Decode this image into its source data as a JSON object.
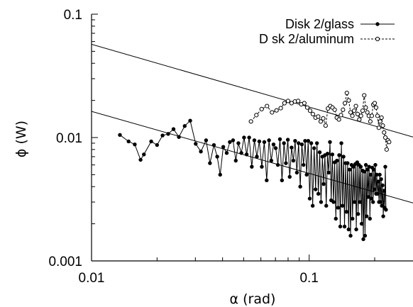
{
  "chart_data": {
    "type": "scatter",
    "title": "",
    "xlabel": "α (rad)",
    "ylabel": "ϕ (W)",
    "xscale": "log",
    "yscale": "log",
    "xlim": [
      0.01,
      0.3
    ],
    "ylim": [
      0.001,
      0.1
    ],
    "x_ticks": [
      0.01,
      0.1
    ],
    "x_tick_labels": [
      "0.01",
      "0.1"
    ],
    "y_ticks": [
      0.001,
      0.01,
      0.1
    ],
    "y_tick_labels": [
      "0.001",
      "0.01",
      "0.1"
    ],
    "grid": false,
    "legend_position": "top-right",
    "series": [
      {
        "name": "Disk 2/glass",
        "marker": "filled-circle",
        "line": "solid",
        "color": "#000000",
        "x": [
          0.0135,
          0.0148,
          0.0158,
          0.0168,
          0.0174,
          0.0188,
          0.02,
          0.0212,
          0.0225,
          0.0238,
          0.0252,
          0.0268,
          0.0284,
          0.0301,
          0.0318,
          0.0336,
          0.035,
          0.0365,
          0.0378,
          0.039,
          0.0403,
          0.0418,
          0.0432,
          0.0447,
          0.046,
          0.0473,
          0.0488,
          0.0502,
          0.0516,
          0.053,
          0.0545,
          0.056,
          0.0575,
          0.059,
          0.0606,
          0.0622,
          0.0638,
          0.0654,
          0.067,
          0.0686,
          0.0702,
          0.0718,
          0.0734,
          0.075,
          0.0766,
          0.0782,
          0.0798,
          0.0814,
          0.083,
          0.0846,
          0.0862,
          0.0878,
          0.0894,
          0.091,
          0.0926,
          0.0942,
          0.0958,
          0.0974,
          0.099,
          0.1006,
          0.1022,
          0.1038,
          0.1054,
          0.107,
          0.1086,
          0.1102,
          0.1118,
          0.1134,
          0.115,
          0.1166,
          0.1182,
          0.1198,
          0.1214,
          0.123,
          0.1246,
          0.1262,
          0.1278,
          0.1294,
          0.131,
          0.1326,
          0.1342,
          0.1358,
          0.1374,
          0.139,
          0.1406,
          0.1422,
          0.1438,
          0.1454,
          0.147,
          0.1486,
          0.1502,
          0.1518,
          0.1534,
          0.155,
          0.1566,
          0.1582,
          0.1598,
          0.1614,
          0.163,
          0.1646,
          0.1662,
          0.1678,
          0.1694,
          0.171,
          0.1726,
          0.1742,
          0.1758,
          0.1774,
          0.179,
          0.1806,
          0.1822,
          0.1838,
          0.1854,
          0.187,
          0.1886,
          0.1902,
          0.1918,
          0.1934,
          0.195,
          0.1966,
          0.1982,
          0.1998,
          0.2014,
          0.203,
          0.2046,
          0.2062,
          0.2078,
          0.2094,
          0.211,
          0.2126,
          0.2142,
          0.2158,
          0.2174,
          0.219,
          0.2206,
          0.2222,
          0.2238,
          0.2254
        ],
        "y": [
          0.0105,
          0.0093,
          0.0088,
          0.0066,
          0.0073,
          0.0093,
          0.0087,
          0.0104,
          0.0107,
          0.0117,
          0.0101,
          0.0124,
          0.0137,
          0.0089,
          0.0077,
          0.0095,
          0.0062,
          0.0087,
          0.007,
          0.005,
          0.0084,
          0.0075,
          0.0092,
          0.0095,
          0.0065,
          0.009,
          0.0075,
          0.01,
          0.0073,
          0.01,
          0.0058,
          0.0095,
          0.007,
          0.0093,
          0.0058,
          0.0092,
          0.0045,
          0.0095,
          0.0065,
          0.0088,
          0.0082,
          0.006,
          0.0097,
          0.0045,
          0.009,
          0.0062,
          0.0096,
          0.0048,
          0.0083,
          0.0065,
          0.0094,
          0.0052,
          0.009,
          0.004,
          0.0088,
          0.006,
          0.0094,
          0.005,
          0.0094,
          0.0032,
          0.009,
          0.0028,
          0.0082,
          0.0038,
          0.009,
          0.0035,
          0.0076,
          0.003,
          0.007,
          0.0042,
          0.0072,
          0.0028,
          0.0074,
          0.0052,
          0.0092,
          0.0031,
          0.0073,
          0.003,
          0.0063,
          0.0022,
          0.0065,
          0.0027,
          0.0072,
          0.0019,
          0.009,
          0.0028,
          0.007,
          0.0019,
          0.0062,
          0.0025,
          0.0062,
          0.0018,
          0.0055,
          0.0016,
          0.006,
          0.0022,
          0.0058,
          0.003,
          0.0061,
          0.0018,
          0.0063,
          0.0024,
          0.006,
          0.003,
          0.0058,
          0.002,
          0.0054,
          0.0015,
          0.0053,
          0.0016,
          0.006,
          0.0023,
          0.0055,
          0.0033,
          0.0058,
          0.0022,
          0.005,
          0.0032,
          0.0057,
          0.003,
          0.0055,
          0.0038,
          0.006,
          0.0035,
          0.005,
          0.0035,
          0.0044,
          0.003,
          0.005,
          0.003,
          0.0046,
          0.0028,
          0.0041,
          0.0023,
          0.0037,
          0.0027,
          0.0058,
          0.0026
        ]
      },
      {
        "name": "D sk 2/aluminum",
        "marker": "open-circle",
        "line": "dashed",
        "color": "#000000",
        "x": [
          0.054,
          0.0572,
          0.0605,
          0.064,
          0.0675,
          0.0708,
          0.074,
          0.077,
          0.08,
          0.083,
          0.086,
          0.089,
          0.092,
          0.095,
          0.098,
          0.101,
          0.104,
          0.107,
          0.11,
          0.113,
          0.116,
          0.119,
          0.122,
          0.125,
          0.128,
          0.131,
          0.134,
          0.137,
          0.14,
          0.143,
          0.146,
          0.149,
          0.152,
          0.155,
          0.158,
          0.161,
          0.164,
          0.167,
          0.17,
          0.173,
          0.176,
          0.179,
          0.182,
          0.185,
          0.188,
          0.191,
          0.194,
          0.197,
          0.2,
          0.203,
          0.206,
          0.209,
          0.212,
          0.215,
          0.218,
          0.221,
          0.224,
          0.227,
          0.23,
          0.233
        ],
        "y": [
          0.0135,
          0.0152,
          0.017,
          0.018,
          0.016,
          0.0166,
          0.0173,
          0.019,
          0.0198,
          0.019,
          0.0196,
          0.0198,
          0.0186,
          0.019,
          0.0175,
          0.0165,
          0.0155,
          0.0145,
          0.0148,
          0.0135,
          0.0143,
          0.0125,
          0.0172,
          0.018,
          0.0175,
          0.0168,
          0.0145,
          0.014,
          0.0152,
          0.0168,
          0.019,
          0.023,
          0.02,
          0.016,
          0.015,
          0.0165,
          0.018,
          0.0155,
          0.014,
          0.015,
          0.0165,
          0.022,
          0.0175,
          0.016,
          0.015,
          0.0135,
          0.015,
          0.0185,
          0.019,
          0.0175,
          0.015,
          0.012,
          0.0135,
          0.0145,
          0.0125,
          0.011,
          0.01,
          0.008,
          0.0095,
          0.0092
        ]
      }
    ],
    "reference_lines": [
      {
        "style": "solid",
        "x": [
          0.01,
          0.3
        ],
        "y": [
          0.057,
          0.0101
        ]
      },
      {
        "style": "solid",
        "x": [
          0.01,
          0.3
        ],
        "y": [
          0.0163,
          0.00295
        ]
      }
    ]
  }
}
